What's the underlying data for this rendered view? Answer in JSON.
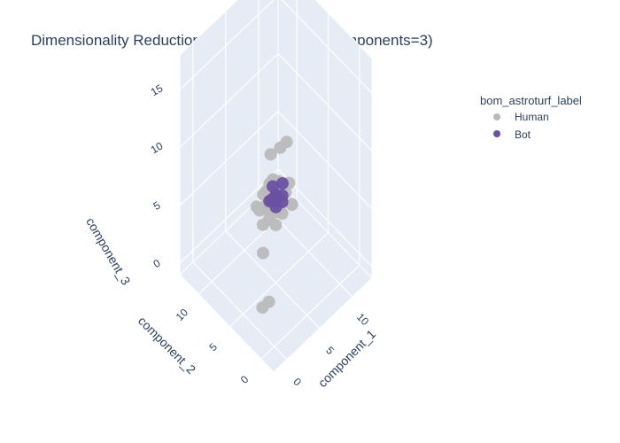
{
  "chart_data": {
    "type": "scatter",
    "title": "Dimensionality Reduction Results (UMAP n_components=3)",
    "legend": {
      "title": "bom_astroturf_label",
      "placement": "top-right",
      "entries": [
        {
          "label": "Human",
          "color": "#bababa"
        },
        {
          "label": "Bot",
          "color": "#6a51a3"
        }
      ]
    },
    "axes": {
      "x": {
        "label": "component_1",
        "ticks": [
          "0",
          "5",
          "10"
        ],
        "range": [
          -2,
          13
        ]
      },
      "y": {
        "label": "component_2",
        "ticks": [
          "0",
          "5",
          "10"
        ],
        "range": [
          -2,
          13
        ]
      },
      "z": {
        "label": "component_3",
        "ticks": [
          "0",
          "5",
          "10",
          "15"
        ],
        "range": [
          -1,
          18
        ]
      }
    },
    "grid": true,
    "series": [
      {
        "name": "Human",
        "color": "#bababa",
        "points": [
          [
            -1.5,
            -1.0,
            17.0
          ],
          [
            10.0,
            8.5,
            6.5
          ],
          [
            9.5,
            9.0,
            6.0
          ],
          [
            3.0,
            4.0,
            -1.0
          ],
          [
            2.5,
            4.5,
            -1.5
          ],
          [
            4.5,
            6.5,
            1.0
          ],
          [
            5.0,
            5.5,
            6.0
          ],
          [
            5.5,
            6.0,
            5.5
          ],
          [
            4.0,
            5.0,
            5.0
          ],
          [
            6.0,
            6.5,
            6.5
          ],
          [
            5.0,
            6.0,
            7.0
          ],
          [
            4.5,
            5.5,
            6.0
          ],
          [
            6.5,
            5.0,
            6.0
          ],
          [
            5.5,
            4.5,
            5.0
          ],
          [
            6.0,
            5.5,
            4.5
          ],
          [
            7.0,
            6.0,
            5.5
          ],
          [
            4.0,
            6.0,
            4.0
          ],
          [
            5.0,
            7.0,
            5.5
          ],
          [
            6.5,
            7.0,
            6.0
          ],
          [
            3.5,
            5.0,
            6.5
          ],
          [
            5.5,
            5.0,
            7.5
          ],
          [
            7.5,
            5.5,
            6.0
          ],
          [
            4.5,
            4.5,
            6.0
          ],
          [
            6.0,
            6.0,
            4.0
          ],
          [
            5.0,
            6.5,
            4.5
          ],
          [
            4.0,
            7.0,
            5.0
          ],
          [
            6.5,
            4.0,
            5.5
          ],
          [
            5.0,
            5.0,
            4.0
          ],
          [
            7.0,
            4.5,
            5.0
          ],
          [
            3.5,
            6.0,
            5.5
          ],
          [
            6.0,
            7.5,
            5.0
          ]
        ]
      },
      {
        "name": "Bot",
        "color": "#6a51a3",
        "points": [
          [
            5.5,
            5.5,
            6.0
          ],
          [
            5.0,
            5.0,
            6.0
          ],
          [
            6.0,
            5.0,
            6.0
          ],
          [
            5.5,
            6.0,
            6.5
          ],
          [
            5.0,
            6.0,
            5.5
          ],
          [
            6.0,
            6.0,
            5.5
          ],
          [
            4.5,
            5.0,
            6.5
          ],
          [
            6.5,
            5.5,
            6.5
          ],
          [
            5.5,
            4.5,
            6.0
          ],
          [
            5.5,
            5.5,
            5.0
          ]
        ]
      }
    ]
  }
}
